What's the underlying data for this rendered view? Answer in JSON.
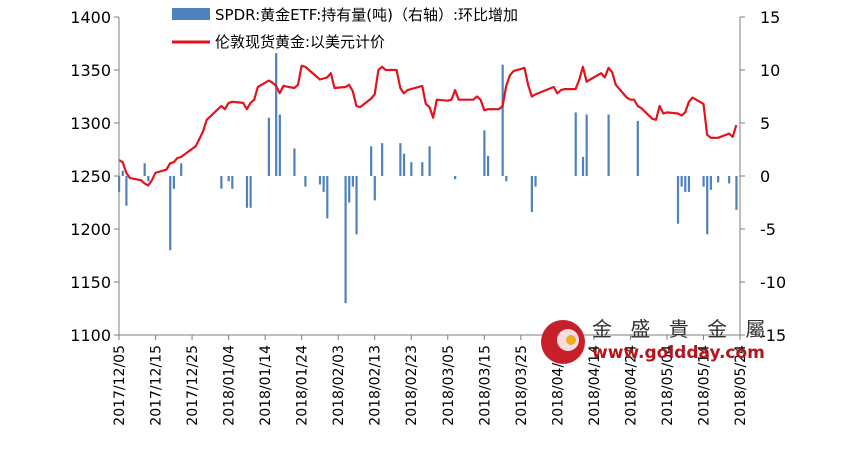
{
  "chart_data": {
    "type": "bar+line",
    "legend": {
      "bar_series": "SPDR:黄金ETF:持有量(吨)（右轴）:环比增加",
      "line_series": "伦敦现货黄金:以美元计价"
    },
    "left_axis": {
      "ylim": [
        1100,
        1400
      ],
      "ticks": [
        "1100",
        "1150",
        "1200",
        "1250",
        "1300",
        "1350",
        "1400"
      ]
    },
    "right_axis": {
      "ylim": [
        -15,
        15
      ],
      "ticks": [
        "-15",
        "-10",
        "-5",
        "0",
        "5",
        "10",
        "15"
      ]
    },
    "x_tick_labels": [
      "2017/12/05",
      "2017/12/15",
      "2017/12/25",
      "2018/01/04",
      "2018/01/14",
      "2018/01/24",
      "2018/02/03",
      "2018/02/13",
      "2018/02/23",
      "2018/03/05",
      "2018/03/15",
      "2018/03/25",
      "2018/04/04",
      "2018/04/14",
      "2018/04/24",
      "2018/05/04",
      "2018/05/14",
      "2018/05/24"
    ],
    "start_date": "2017-12-05",
    "end_date": "2018-05-24",
    "gold_price": [
      [
        "2017-12-05",
        1265
      ],
      [
        "2017-12-06",
        1263
      ],
      [
        "2017-12-07",
        1253
      ],
      [
        "2017-12-08",
        1248
      ],
      [
        "2017-12-11",
        1246
      ],
      [
        "2017-12-12",
        1243
      ],
      [
        "2017-12-13",
        1241
      ],
      [
        "2017-12-14",
        1246
      ],
      [
        "2017-12-15",
        1253
      ],
      [
        "2017-12-18",
        1256
      ],
      [
        "2017-12-19",
        1262
      ],
      [
        "2017-12-20",
        1263
      ],
      [
        "2017-12-21",
        1267
      ],
      [
        "2017-12-22",
        1268
      ],
      [
        "2017-12-26",
        1278
      ],
      [
        "2017-12-27",
        1285
      ],
      [
        "2017-12-28",
        1292
      ],
      [
        "2017-12-29",
        1303
      ],
      [
        "2018-01-02",
        1316
      ],
      [
        "2018-01-03",
        1313
      ],
      [
        "2018-01-04",
        1319
      ],
      [
        "2018-01-05",
        1320
      ],
      [
        "2018-01-08",
        1319
      ],
      [
        "2018-01-09",
        1313
      ],
      [
        "2018-01-10",
        1319
      ],
      [
        "2018-01-11",
        1322
      ],
      [
        "2018-01-12",
        1334
      ],
      [
        "2018-01-15",
        1340
      ],
      [
        "2018-01-16",
        1338
      ],
      [
        "2018-01-17",
        1335
      ],
      [
        "2018-01-18",
        1328
      ],
      [
        "2018-01-19",
        1335
      ],
      [
        "2018-01-22",
        1333
      ],
      [
        "2018-01-23",
        1336
      ],
      [
        "2018-01-24",
        1354
      ],
      [
        "2018-01-25",
        1353
      ],
      [
        "2018-01-26",
        1350
      ],
      [
        "2018-01-29",
        1341
      ],
      [
        "2018-01-30",
        1342
      ],
      [
        "2018-01-31",
        1343
      ],
      [
        "2018-02-01",
        1347
      ],
      [
        "2018-02-02",
        1333
      ],
      [
        "2018-02-05",
        1334
      ],
      [
        "2018-02-06",
        1336
      ],
      [
        "2018-02-07",
        1330
      ],
      [
        "2018-02-08",
        1316
      ],
      [
        "2018-02-09",
        1315
      ],
      [
        "2018-02-12",
        1323
      ],
      [
        "2018-02-13",
        1327
      ],
      [
        "2018-02-14",
        1350
      ],
      [
        "2018-02-15",
        1353
      ],
      [
        "2018-02-16",
        1350
      ],
      [
        "2018-02-19",
        1350
      ],
      [
        "2018-02-20",
        1333
      ],
      [
        "2018-02-21",
        1328
      ],
      [
        "2018-02-22",
        1331
      ],
      [
        "2018-02-23",
        1332
      ],
      [
        "2018-02-26",
        1335
      ],
      [
        "2018-02-27",
        1318
      ],
      [
        "2018-02-28",
        1315
      ],
      [
        "2018-03-01",
        1305
      ],
      [
        "2018-03-02",
        1322
      ],
      [
        "2018-03-05",
        1321
      ],
      [
        "2018-03-06",
        1322
      ],
      [
        "2018-03-07",
        1331
      ],
      [
        "2018-03-08",
        1322
      ],
      [
        "2018-03-09",
        1322
      ],
      [
        "2018-03-12",
        1322
      ],
      [
        "2018-03-13",
        1325
      ],
      [
        "2018-03-14",
        1322
      ],
      [
        "2018-03-15",
        1312
      ],
      [
        "2018-03-16",
        1313
      ],
      [
        "2018-03-19",
        1313
      ],
      [
        "2018-03-20",
        1316
      ],
      [
        "2018-03-21",
        1335
      ],
      [
        "2018-03-22",
        1345
      ],
      [
        "2018-03-23",
        1349
      ],
      [
        "2018-03-26",
        1352
      ],
      [
        "2018-03-27",
        1336
      ],
      [
        "2018-03-28",
        1325
      ],
      [
        "2018-03-29",
        1327
      ],
      [
        "2018-04-03",
        1334
      ],
      [
        "2018-04-04",
        1328
      ],
      [
        "2018-04-05",
        1331
      ],
      [
        "2018-04-06",
        1332
      ],
      [
        "2018-04-09",
        1332
      ],
      [
        "2018-04-10",
        1341
      ],
      [
        "2018-04-11",
        1353
      ],
      [
        "2018-04-12",
        1339
      ],
      [
        "2018-04-13",
        1341
      ],
      [
        "2018-04-16",
        1347
      ],
      [
        "2018-04-17",
        1343
      ],
      [
        "2018-04-18",
        1352
      ],
      [
        "2018-04-19",
        1348
      ],
      [
        "2018-04-20",
        1336
      ],
      [
        "2018-04-23",
        1324
      ],
      [
        "2018-04-24",
        1322
      ],
      [
        "2018-04-25",
        1322
      ],
      [
        "2018-04-26",
        1316
      ],
      [
        "2018-04-27",
        1314
      ],
      [
        "2018-04-30",
        1304
      ],
      [
        "2018-05-01",
        1303
      ],
      [
        "2018-05-02",
        1316
      ],
      [
        "2018-05-03",
        1309
      ],
      [
        "2018-05-04",
        1310
      ],
      [
        "2018-05-07",
        1309
      ],
      [
        "2018-05-08",
        1307
      ],
      [
        "2018-05-09",
        1310
      ],
      [
        "2018-05-10",
        1320
      ],
      [
        "2018-05-11",
        1324
      ],
      [
        "2018-05-14",
        1318
      ],
      [
        "2018-05-15",
        1289
      ],
      [
        "2018-05-16",
        1286
      ],
      [
        "2018-05-17",
        1286
      ],
      [
        "2018-05-18",
        1286
      ],
      [
        "2018-05-21",
        1290
      ],
      [
        "2018-05-22",
        1287
      ],
      [
        "2018-05-23",
        1298
      ]
    ],
    "spdr_change": [
      [
        "2017-12-05",
        -1.5
      ],
      [
        "2017-12-06",
        0.5
      ],
      [
        "2017-12-07",
        -2.8
      ],
      [
        "2017-12-12",
        1.2
      ],
      [
        "2017-12-13",
        -0.5
      ],
      [
        "2017-12-19",
        -7
      ],
      [
        "2017-12-20",
        -1.2
      ],
      [
        "2017-12-22",
        1.2
      ],
      [
        "2018-01-02",
        -1.2
      ],
      [
        "2018-01-04",
        -0.5
      ],
      [
        "2018-01-05",
        -1.2
      ],
      [
        "2018-01-09",
        -3
      ],
      [
        "2018-01-10",
        -3
      ],
      [
        "2018-01-15",
        5.5
      ],
      [
        "2018-01-17",
        11.6
      ],
      [
        "2018-01-18",
        5.8
      ],
      [
        "2018-01-22",
        2.6
      ],
      [
        "2018-01-25",
        -1
      ],
      [
        "2018-01-29",
        -0.8
      ],
      [
        "2018-01-30",
        -1.5
      ],
      [
        "2018-01-31",
        -4
      ],
      [
        "2018-02-05",
        -12
      ],
      [
        "2018-02-06",
        -2.5
      ],
      [
        "2018-02-07",
        -1
      ],
      [
        "2018-02-08",
        -5.5
      ],
      [
        "2018-02-12",
        2.8
      ],
      [
        "2018-02-13",
        -2.3
      ],
      [
        "2018-02-15",
        3.1
      ],
      [
        "2018-02-20",
        3.1
      ],
      [
        "2018-02-21",
        2.1
      ],
      [
        "2018-02-23",
        1.3
      ],
      [
        "2018-02-26",
        1.3
      ],
      [
        "2018-02-28",
        2.8
      ],
      [
        "2018-03-07",
        -0.3
      ],
      [
        "2018-03-15",
        4.3
      ],
      [
        "2018-03-16",
        1.9
      ],
      [
        "2018-03-20",
        10.5
      ],
      [
        "2018-03-21",
        -0.5
      ],
      [
        "2018-03-28",
        -3.4
      ],
      [
        "2018-03-29",
        -1
      ],
      [
        "2018-04-09",
        6
      ],
      [
        "2018-04-11",
        1.8
      ],
      [
        "2018-04-12",
        5.8
      ],
      [
        "2018-04-18",
        5.8
      ],
      [
        "2018-04-26",
        5.2
      ],
      [
        "2018-05-07",
        -4.5
      ],
      [
        "2018-05-08",
        -1
      ],
      [
        "2018-05-09",
        -1.5
      ],
      [
        "2018-05-10",
        -1.5
      ],
      [
        "2018-05-14",
        -1
      ],
      [
        "2018-05-15",
        -5.5
      ],
      [
        "2018-05-16",
        -1.3
      ],
      [
        "2018-05-18",
        -0.6
      ],
      [
        "2018-05-21",
        -0.7
      ],
      [
        "2018-05-23",
        -3.2
      ]
    ],
    "colors": {
      "bar": "#4f81bd",
      "line": "#e3121b",
      "axis": "#7f7f7f"
    }
  },
  "watermark": {
    "name": "金 盛 貴 金 屬",
    "url": "www.goldday.com"
  }
}
